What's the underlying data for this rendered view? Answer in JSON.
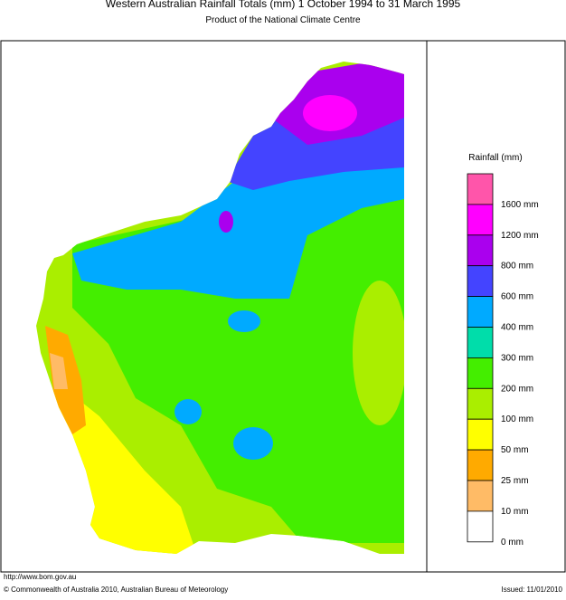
{
  "header": {
    "title": "Western Australian Rainfall Totals (mm) 1 October 1994 to 31 March 1995",
    "subtitle": "Product of the National Climate Centre"
  },
  "legend": {
    "title": "Rainfall (mm)",
    "items": [
      {
        "label": "1600 mm",
        "color": "#ff55aa"
      },
      {
        "label": "1200 mm",
        "color": "#ff00ff"
      },
      {
        "label": "800 mm",
        "color": "#aa00ee"
      },
      {
        "label": "600 mm",
        "color": "#4444ff"
      },
      {
        "label": "400 mm",
        "color": "#00aaff"
      },
      {
        "label": "300 mm",
        "color": "#00ddaa"
      },
      {
        "label": "200 mm",
        "color": "#44ee00"
      },
      {
        "label": "100 mm",
        "color": "#aaee00"
      },
      {
        "label": "50 mm",
        "color": "#ffff00"
      },
      {
        "label": "25 mm",
        "color": "#ffaa00"
      },
      {
        "label": "10 mm",
        "color": "#ffbb66"
      },
      {
        "label": "0 mm",
        "color": "#ffffff"
      }
    ]
  },
  "footer": {
    "url": "http://www.bom.gov.au",
    "copyright": "© Commonwealth of Australia 2010, Australian Bureau of Meteorology",
    "issued": "Issued: 11/01/2010"
  }
}
